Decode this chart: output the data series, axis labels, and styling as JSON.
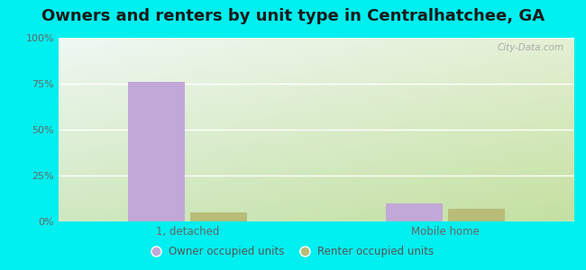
{
  "title": "Owners and renters by unit type in Centralhatchee, GA",
  "categories": [
    "1, detached",
    "Mobile home"
  ],
  "owner_values": [
    76,
    10
  ],
  "renter_values": [
    5,
    7
  ],
  "owner_color": "#c2a8d8",
  "renter_color": "#b8bc78",
  "owner_label": "Owner occupied units",
  "renter_label": "Renter occupied units",
  "background_color": "#00EFEF",
  "chart_bg_topleft": "#f0f8f0",
  "chart_bg_bottomright": "#d0e8c0",
  "ylim": [
    0,
    100
  ],
  "yticks": [
    0,
    25,
    50,
    75,
    100
  ],
  "ytick_labels": [
    "0%",
    "25%",
    "50%",
    "75%",
    "100%"
  ],
  "title_fontsize": 13,
  "bar_width": 0.22,
  "watermark": "City-Data.com"
}
